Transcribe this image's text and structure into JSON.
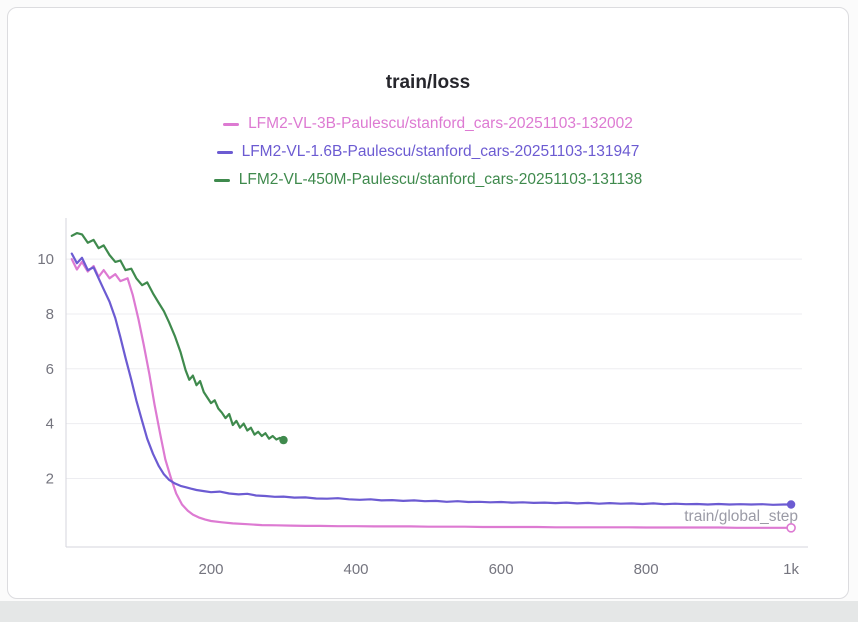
{
  "panel": {
    "type": "wandb-line-plot-panel"
  },
  "chart_data": {
    "type": "line",
    "title": "train/loss",
    "xlabel": "train/global_step",
    "ylabel": "",
    "xlim": [
      0,
      1015
    ],
    "ylim": [
      -0.5,
      11.5
    ],
    "x_ticks": [
      200,
      400,
      600,
      800,
      1000
    ],
    "x_tick_labels": [
      "200",
      "400",
      "600",
      "800",
      "1k"
    ],
    "y_ticks": [
      2,
      4,
      6,
      8,
      10
    ],
    "grid": true,
    "legend_position": "top",
    "colors": {
      "grid": "#ededf1",
      "axis": "#d6d6dc",
      "tick_text": "#75757f",
      "label_text": "#9b9ba6",
      "title_text": "#26262c"
    },
    "series": [
      {
        "name": "LFM2-VL-3B-Paulescu/stanford_cars-20251103-132002",
        "color": "#dd7ad2",
        "end_marker": "open",
        "points": [
          [
            8,
            10.0
          ],
          [
            15,
            9.62
          ],
          [
            22,
            9.9
          ],
          [
            30,
            9.55
          ],
          [
            38,
            9.75
          ],
          [
            45,
            9.35
          ],
          [
            52,
            9.6
          ],
          [
            60,
            9.3
          ],
          [
            68,
            9.45
          ],
          [
            75,
            9.2
          ],
          [
            85,
            9.3
          ],
          [
            92,
            8.7
          ],
          [
            100,
            7.8
          ],
          [
            107,
            6.9
          ],
          [
            115,
            5.8
          ],
          [
            122,
            4.7
          ],
          [
            130,
            3.6
          ],
          [
            137,
            2.7
          ],
          [
            145,
            2.0
          ],
          [
            152,
            1.45
          ],
          [
            160,
            1.05
          ],
          [
            168,
            0.82
          ],
          [
            175,
            0.68
          ],
          [
            183,
            0.58
          ],
          [
            192,
            0.5
          ],
          [
            200,
            0.45
          ],
          [
            215,
            0.4
          ],
          [
            230,
            0.36
          ],
          [
            250,
            0.33
          ],
          [
            270,
            0.3
          ],
          [
            290,
            0.29
          ],
          [
            310,
            0.28
          ],
          [
            330,
            0.27
          ],
          [
            350,
            0.27
          ],
          [
            375,
            0.26
          ],
          [
            400,
            0.26
          ],
          [
            425,
            0.25
          ],
          [
            450,
            0.25
          ],
          [
            475,
            0.25
          ],
          [
            500,
            0.24
          ],
          [
            525,
            0.24
          ],
          [
            550,
            0.24
          ],
          [
            575,
            0.23
          ],
          [
            600,
            0.23
          ],
          [
            625,
            0.23
          ],
          [
            650,
            0.23
          ],
          [
            675,
            0.22
          ],
          [
            700,
            0.22
          ],
          [
            725,
            0.22
          ],
          [
            750,
            0.22
          ],
          [
            775,
            0.22
          ],
          [
            800,
            0.21
          ],
          [
            825,
            0.21
          ],
          [
            850,
            0.21
          ],
          [
            875,
            0.21
          ],
          [
            900,
            0.21
          ],
          [
            925,
            0.2
          ],
          [
            950,
            0.2
          ],
          [
            975,
            0.2
          ],
          [
            1000,
            0.2
          ]
        ]
      },
      {
        "name": "LFM2-VL-1.6B-Paulescu/stanford_cars-20251103-131947",
        "color": "#6c5bd2",
        "end_marker": "filled",
        "points": [
          [
            8,
            10.2
          ],
          [
            15,
            9.85
          ],
          [
            22,
            10.05
          ],
          [
            30,
            9.6
          ],
          [
            38,
            9.7
          ],
          [
            45,
            9.3
          ],
          [
            52,
            8.9
          ],
          [
            60,
            8.45
          ],
          [
            68,
            7.85
          ],
          [
            75,
            7.15
          ],
          [
            82,
            6.4
          ],
          [
            90,
            5.6
          ],
          [
            97,
            4.85
          ],
          [
            105,
            4.1
          ],
          [
            112,
            3.45
          ],
          [
            120,
            2.9
          ],
          [
            128,
            2.45
          ],
          [
            135,
            2.15
          ],
          [
            142,
            1.95
          ],
          [
            150,
            1.82
          ],
          [
            158,
            1.73
          ],
          [
            165,
            1.68
          ],
          [
            172,
            1.63
          ],
          [
            180,
            1.58
          ],
          [
            190,
            1.54
          ],
          [
            200,
            1.5
          ],
          [
            212,
            1.52
          ],
          [
            225,
            1.45
          ],
          [
            238,
            1.42
          ],
          [
            250,
            1.44
          ],
          [
            262,
            1.38
          ],
          [
            275,
            1.36
          ],
          [
            288,
            1.33
          ],
          [
            300,
            1.34
          ],
          [
            315,
            1.3
          ],
          [
            330,
            1.31
          ],
          [
            345,
            1.27
          ],
          [
            360,
            1.26
          ],
          [
            375,
            1.28
          ],
          [
            390,
            1.24
          ],
          [
            405,
            1.22
          ],
          [
            420,
            1.24
          ],
          [
            435,
            1.2
          ],
          [
            450,
            1.21
          ],
          [
            465,
            1.18
          ],
          [
            480,
            1.2
          ],
          [
            495,
            1.17
          ],
          [
            510,
            1.18
          ],
          [
            525,
            1.15
          ],
          [
            540,
            1.17
          ],
          [
            555,
            1.14
          ],
          [
            570,
            1.15
          ],
          [
            585,
            1.13
          ],
          [
            600,
            1.14
          ],
          [
            615,
            1.12
          ],
          [
            630,
            1.13
          ],
          [
            645,
            1.11
          ],
          [
            660,
            1.12
          ],
          [
            675,
            1.1
          ],
          [
            690,
            1.12
          ],
          [
            705,
            1.09
          ],
          [
            720,
            1.11
          ],
          [
            735,
            1.08
          ],
          [
            750,
            1.1
          ],
          [
            765,
            1.08
          ],
          [
            780,
            1.09
          ],
          [
            795,
            1.07
          ],
          [
            810,
            1.09
          ],
          [
            825,
            1.06
          ],
          [
            840,
            1.08
          ],
          [
            855,
            1.06
          ],
          [
            870,
            1.07
          ],
          [
            885,
            1.05
          ],
          [
            900,
            1.07
          ],
          [
            915,
            1.05
          ],
          [
            930,
            1.06
          ],
          [
            945,
            1.05
          ],
          [
            960,
            1.06
          ],
          [
            975,
            1.04
          ],
          [
            990,
            1.05
          ],
          [
            1000,
            1.05
          ]
        ]
      },
      {
        "name": "LFM2-VL-450M-Paulescu/stanford_cars-20251103-131138",
        "color": "#3f8a4d",
        "end_marker": "filled",
        "points": [
          [
            8,
            10.85
          ],
          [
            15,
            10.95
          ],
          [
            22,
            10.9
          ],
          [
            30,
            10.6
          ],
          [
            38,
            10.7
          ],
          [
            45,
            10.4
          ],
          [
            52,
            10.5
          ],
          [
            60,
            10.15
          ],
          [
            68,
            9.9
          ],
          [
            75,
            9.95
          ],
          [
            82,
            9.6
          ],
          [
            90,
            9.65
          ],
          [
            97,
            9.3
          ],
          [
            105,
            9.05
          ],
          [
            112,
            9.15
          ],
          [
            120,
            8.75
          ],
          [
            128,
            8.4
          ],
          [
            135,
            8.1
          ],
          [
            142,
            7.7
          ],
          [
            150,
            7.2
          ],
          [
            158,
            6.6
          ],
          [
            165,
            5.95
          ],
          [
            170,
            5.6
          ],
          [
            175,
            5.75
          ],
          [
            180,
            5.4
          ],
          [
            185,
            5.55
          ],
          [
            190,
            5.15
          ],
          [
            195,
            4.95
          ],
          [
            200,
            4.75
          ],
          [
            205,
            4.85
          ],
          [
            210,
            4.55
          ],
          [
            215,
            4.4
          ],
          [
            220,
            4.2
          ],
          [
            225,
            4.35
          ],
          [
            230,
            3.95
          ],
          [
            235,
            4.1
          ],
          [
            240,
            3.85
          ],
          [
            245,
            4.0
          ],
          [
            250,
            3.75
          ],
          [
            255,
            3.85
          ],
          [
            260,
            3.6
          ],
          [
            265,
            3.7
          ],
          [
            270,
            3.55
          ],
          [
            275,
            3.65
          ],
          [
            280,
            3.45
          ],
          [
            285,
            3.55
          ],
          [
            290,
            3.42
          ],
          [
            295,
            3.48
          ],
          [
            300,
            3.4
          ]
        ]
      }
    ]
  }
}
